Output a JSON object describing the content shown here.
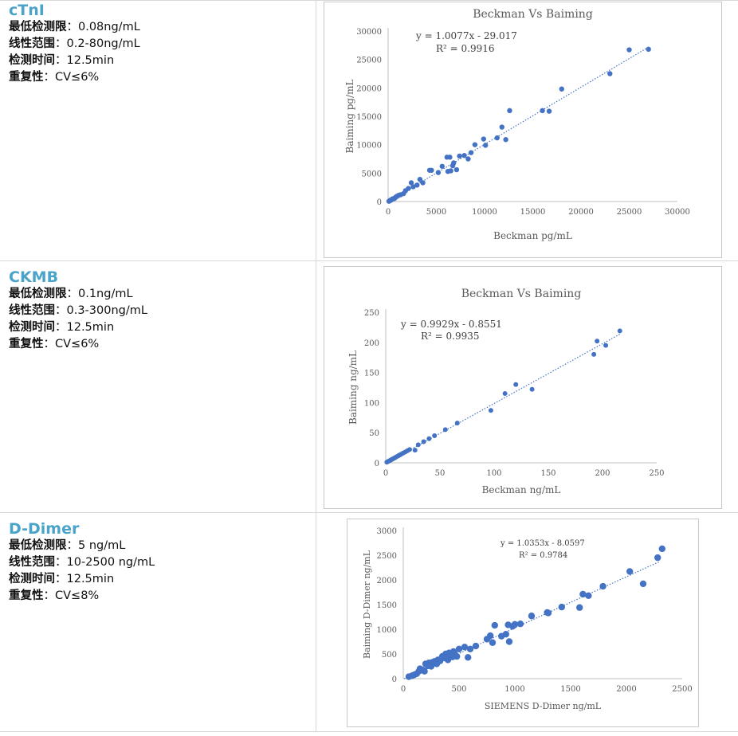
{
  "rows": [
    {
      "product": "cTnI",
      "specs": [
        {
          "label": "最低检测限",
          "sep": "：",
          "value": "0.08ng/mL"
        },
        {
          "label": "线性范围",
          "sep": "：",
          "value": "0.2-80ng/mL"
        },
        {
          "label": "检测时间",
          "sep": "：",
          "value": "12.5min"
        },
        {
          "label": "重复性",
          "sep": "：",
          "value": "CV≤6%"
        }
      ]
    },
    {
      "product": "CKMB",
      "specs": [
        {
          "label": "最低检测限",
          "sep": "：",
          "value": "0.1ng/mL"
        },
        {
          "label": "线性范围",
          "sep": "：",
          "value": "0.3-300ng/mL"
        },
        {
          "label": "检测时间",
          "sep": "：",
          "value": "12.5min"
        },
        {
          "label": "重复性",
          "sep": "：",
          "value": "CV≤6%"
        }
      ]
    },
    {
      "product": "D-Dimer",
      "specs": [
        {
          "label": "最低检测限",
          "sep": "：",
          "value": "5 ng/mL"
        },
        {
          "label": "线性范围",
          "sep": "：",
          "value": "10-2500 ng/mL"
        },
        {
          "label": "检测时间",
          "sep": "：",
          "value": "12.5min"
        },
        {
          "label": "重复性",
          "sep": "：",
          "value": "CV≤8%"
        }
      ]
    }
  ],
  "colors": {
    "product": "#4aa3c9",
    "point": "#4472c4",
    "trend": "#4472c4"
  },
  "chart_data": [
    {
      "type": "scatter",
      "title": "Beckman Vs Baiming",
      "xlabel": "Beckman pg/mL",
      "ylabel": "Baiming  pg/mL",
      "equation": "y = 1.0077x - 29.017",
      "r2": "R² = 0.9916",
      "xlim": [
        0,
        30000
      ],
      "ylim": [
        0,
        30000
      ],
      "xticks": [
        0,
        5000,
        10000,
        15000,
        20000,
        25000,
        30000
      ],
      "yticks": [
        0,
        5000,
        10000,
        15000,
        20000,
        25000,
        30000
      ],
      "grid": false,
      "trendline": {
        "slope": 1.0077,
        "intercept": -29.017,
        "x_range": [
          0,
          27000
        ]
      },
      "x": [
        80,
        150,
        200,
        260,
        300,
        380,
        450,
        520,
        600,
        700,
        800,
        900,
        1000,
        1100,
        1300,
        1600,
        1800,
        2100,
        2400,
        2600,
        3000,
        3300,
        3600,
        4300,
        4500,
        5200,
        5600,
        6100,
        6200,
        6400,
        6500,
        6700,
        6800,
        7100,
        7400,
        7900,
        8300,
        8600,
        9000,
        9900,
        10100,
        11300,
        11800,
        12200,
        12600,
        16000,
        16700,
        18000,
        23000,
        25000,
        27000
      ],
      "y": [
        50,
        100,
        200,
        250,
        250,
        350,
        450,
        500,
        500,
        600,
        800,
        900,
        1000,
        1100,
        1200,
        1400,
        1900,
        2300,
        3300,
        2600,
        2900,
        3900,
        3300,
        5500,
        5500,
        5100,
        6200,
        7800,
        5300,
        7800,
        5400,
        6300,
        6800,
        5600,
        8000,
        8100,
        7500,
        8600,
        10000,
        11000,
        9900,
        11200,
        13100,
        10900,
        16000,
        16000,
        15900,
        19800,
        22500,
        26700,
        26800
      ]
    },
    {
      "type": "scatter",
      "title": "Beckman Vs Baiming",
      "xlabel": "Beckman ng/mL",
      "ylabel": "Baiming  ng/mL",
      "equation": "y = 0.9929x - 0.8551",
      "r2": "R² = 0.9935",
      "xlim": [
        0,
        250
      ],
      "ylim": [
        0,
        250
      ],
      "xticks": [
        0,
        50,
        100,
        150,
        200,
        250
      ],
      "yticks": [
        0,
        50,
        100,
        150,
        200,
        250
      ],
      "grid": false,
      "trendline": {
        "slope": 0.9929,
        "intercept": -0.8551,
        "x_range": [
          0,
          217
        ]
      },
      "x": [
        1,
        2,
        3,
        4,
        5,
        6,
        7,
        8,
        9,
        10,
        11,
        12,
        13,
        14,
        16,
        18,
        20,
        22,
        27,
        30,
        35,
        40,
        45,
        55,
        66,
        97,
        110,
        120,
        135,
        192,
        195,
        203,
        216
      ],
      "y": [
        1,
        2,
        3,
        4,
        5,
        6,
        7,
        8,
        9,
        10,
        11,
        12,
        13,
        14,
        16,
        18,
        20,
        22,
        21,
        30,
        35,
        40,
        45,
        55,
        66,
        87,
        115,
        130,
        122,
        180,
        202,
        195,
        219
      ]
    },
    {
      "type": "scatter",
      "title": "",
      "xlabel": "SIEMENS D-Dimer ng/mL",
      "ylabel": "Baiming D-Dimer ng/mL",
      "equation": "y = 1.0353x - 8.0597",
      "r2": "R² = 0.9784",
      "xlim": [
        0,
        2500
      ],
      "ylim": [
        0,
        3000
      ],
      "xticks": [
        0,
        500,
        1000,
        1500,
        2000,
        2500
      ],
      "yticks": [
        0,
        500,
        1000,
        1500,
        2000,
        2500,
        3000
      ],
      "grid": false,
      "trendline": {
        "slope": 1.0353,
        "intercept": -8.0597,
        "x_range": [
          0,
          2300
        ]
      },
      "x": [
        50,
        80,
        100,
        120,
        140,
        150,
        170,
        190,
        200,
        220,
        230,
        250,
        260,
        280,
        300,
        310,
        330,
        350,
        370,
        380,
        400,
        410,
        420,
        440,
        450,
        460,
        480,
        500,
        550,
        580,
        600,
        650,
        750,
        780,
        800,
        820,
        880,
        920,
        940,
        950,
        980,
        1000,
        1050,
        1150,
        1290,
        1300,
        1420,
        1580,
        1610,
        1660,
        1790,
        2030,
        2150,
        2280,
        2320
      ],
      "y": [
        40,
        60,
        80,
        100,
        150,
        200,
        180,
        150,
        300,
        260,
        320,
        250,
        330,
        350,
        300,
        380,
        360,
        450,
        420,
        500,
        380,
        520,
        470,
        440,
        550,
        500,
        450,
        600,
        640,
        430,
        600,
        660,
        800,
        870,
        730,
        1080,
        860,
        900,
        1090,
        750,
        1060,
        1100,
        1110,
        1270,
        1340,
        1330,
        1450,
        1440,
        1710,
        1680,
        1870,
        2170,
        1920,
        2450,
        2630
      ]
    }
  ]
}
